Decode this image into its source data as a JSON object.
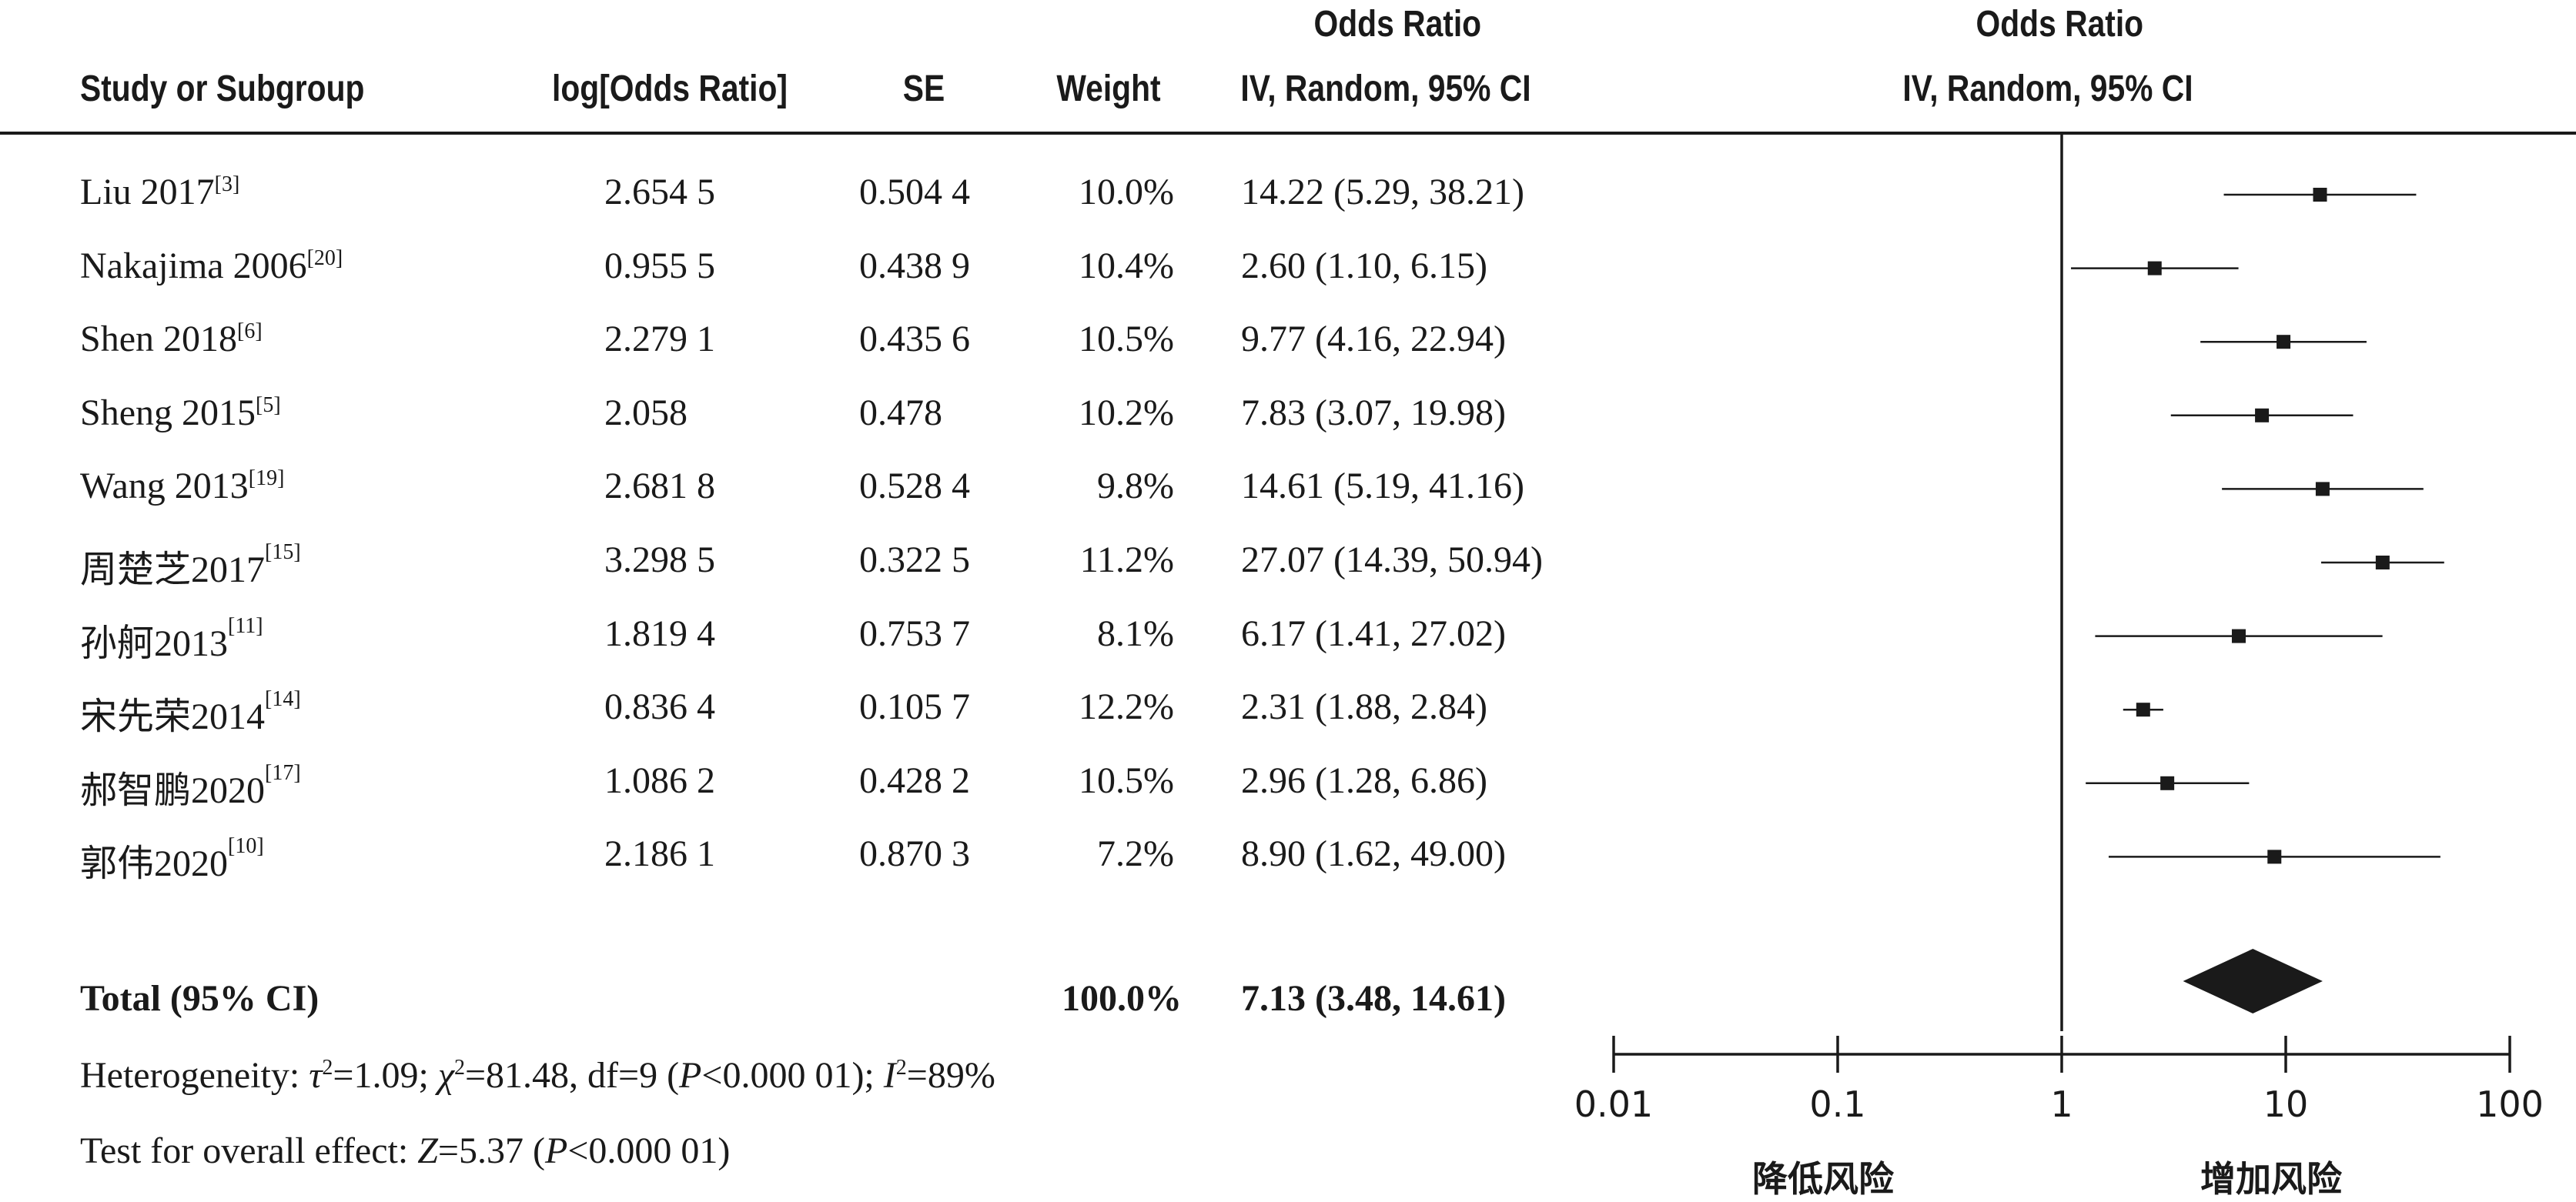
{
  "headers": {
    "study": "Study or Subgroup",
    "log_or": "log[Odds Ratio]",
    "se": "SE",
    "weight": "Weight",
    "or_title": "Odds Ratio",
    "or_sub": "IV, Random, 95% CI",
    "plot_title": "Odds Ratio",
    "plot_sub": "IV, Random, 95% CI"
  },
  "studies": [
    {
      "name": "Liu 2017",
      "ref": "[3]",
      "log_or": "2.654 5",
      "se": "0.504 4",
      "weight": "10.0%",
      "ci_text": "14.22 (5.29, 38.21)"
    },
    {
      "name": "Nakajima 2006",
      "ref": "[20]",
      "log_or": "0.955 5",
      "se": "0.438 9",
      "weight": "10.4%",
      "ci_text": "2.60 (1.10, 6.15)"
    },
    {
      "name": "Shen 2018",
      "ref": "[6]",
      "log_or": "2.279 1",
      "se": "0.435 6",
      "weight": "10.5%",
      "ci_text": "9.77 (4.16, 22.94)"
    },
    {
      "name": "Sheng 2015",
      "ref": "[5]",
      "log_or": "2.058",
      "se": "0.478",
      "weight": "10.2%",
      "ci_text": "7.83 (3.07, 19.98)"
    },
    {
      "name": "Wang 2013",
      "ref": "[19]",
      "log_or": "2.681 8",
      "se": "0.528 4",
      "weight": "9.8%",
      "ci_text": "14.61 (5.19, 41.16)"
    },
    {
      "name": "周楚芝2017",
      "ref": "[15]",
      "log_or": "3.298 5",
      "se": "0.322 5",
      "weight": "11.2%",
      "ci_text": "27.07 (14.39, 50.94)"
    },
    {
      "name": "孙舸2013",
      "ref": "[11]",
      "log_or": "1.819 4",
      "se": "0.753 7",
      "weight": "8.1%",
      "ci_text": "6.17 (1.41, 27.02)"
    },
    {
      "name": "宋先荣2014",
      "ref": "[14]",
      "log_or": "0.836 4",
      "se": "0.105 7",
      "weight": "12.2%",
      "ci_text": "2.31 (1.88, 2.84)"
    },
    {
      "name": "郝智鹏2020",
      "ref": "[17]",
      "log_or": "1.086 2",
      "se": "0.428 2",
      "weight": "10.5%",
      "ci_text": "2.96 (1.28, 6.86)"
    },
    {
      "name": "郭伟2020",
      "ref": "[10]",
      "log_or": "2.186 1",
      "se": "0.870 3",
      "weight": "7.2%",
      "ci_text": "8.90 (1.62, 49.00)"
    }
  ],
  "total": {
    "label": "Total (95% CI)",
    "weight": "100.0%",
    "ci_text": "7.13 (3.48, 14.61)"
  },
  "heterogeneity": {
    "prefix": "Heterogeneity: ",
    "tau_sym": "τ",
    "tau_val": "=1.09; ",
    "chi_sym": "χ",
    "chi_val": "=81.48, df=9 (",
    "p_sym": "P",
    "p_val": "<0.000 01); ",
    "i_sym": "I",
    "i_val": "=89%"
  },
  "overall": {
    "prefix": "Test for overall effect: ",
    "z_sym": "Z",
    "z_val": "=5.37 (",
    "p_sym": "P",
    "p_val": "<0.000 01)"
  },
  "axis": {
    "ticks": [
      "0.01",
      "0.1",
      "1",
      "10",
      "100"
    ],
    "left_label": "降低风险",
    "right_label": "增加风险"
  },
  "chart_data": {
    "type": "forest",
    "scale": "log",
    "xlim": [
      0.01,
      100
    ],
    "ticks": [
      0.01,
      0.1,
      1,
      10,
      100
    ],
    "null_line": 1,
    "studies": [
      {
        "name": "Liu 2017",
        "or": 14.22,
        "lower": 5.29,
        "upper": 38.21,
        "weight": 10.0
      },
      {
        "name": "Nakajima 2006",
        "or": 2.6,
        "lower": 1.1,
        "upper": 6.15,
        "weight": 10.4
      },
      {
        "name": "Shen 2018",
        "or": 9.77,
        "lower": 4.16,
        "upper": 22.94,
        "weight": 10.5
      },
      {
        "name": "Sheng 2015",
        "or": 7.83,
        "lower": 3.07,
        "upper": 19.98,
        "weight": 10.2
      },
      {
        "name": "Wang 2013",
        "or": 14.61,
        "lower": 5.19,
        "upper": 41.16,
        "weight": 9.8
      },
      {
        "name": "周楚芝2017",
        "or": 27.07,
        "lower": 14.39,
        "upper": 50.94,
        "weight": 11.2
      },
      {
        "name": "孙舸2013",
        "or": 6.17,
        "lower": 1.41,
        "upper": 27.02,
        "weight": 8.1
      },
      {
        "name": "宋先荣2014",
        "or": 2.31,
        "lower": 1.88,
        "upper": 2.84,
        "weight": 12.2
      },
      {
        "name": "郝智鹏2020",
        "or": 2.96,
        "lower": 1.28,
        "upper": 6.86,
        "weight": 10.5
      },
      {
        "name": "郭伟2020",
        "or": 8.9,
        "lower": 1.62,
        "upper": 49.0,
        "weight": 7.2
      }
    ],
    "pooled": {
      "or": 7.13,
      "lower": 3.48,
      "upper": 14.61
    }
  }
}
